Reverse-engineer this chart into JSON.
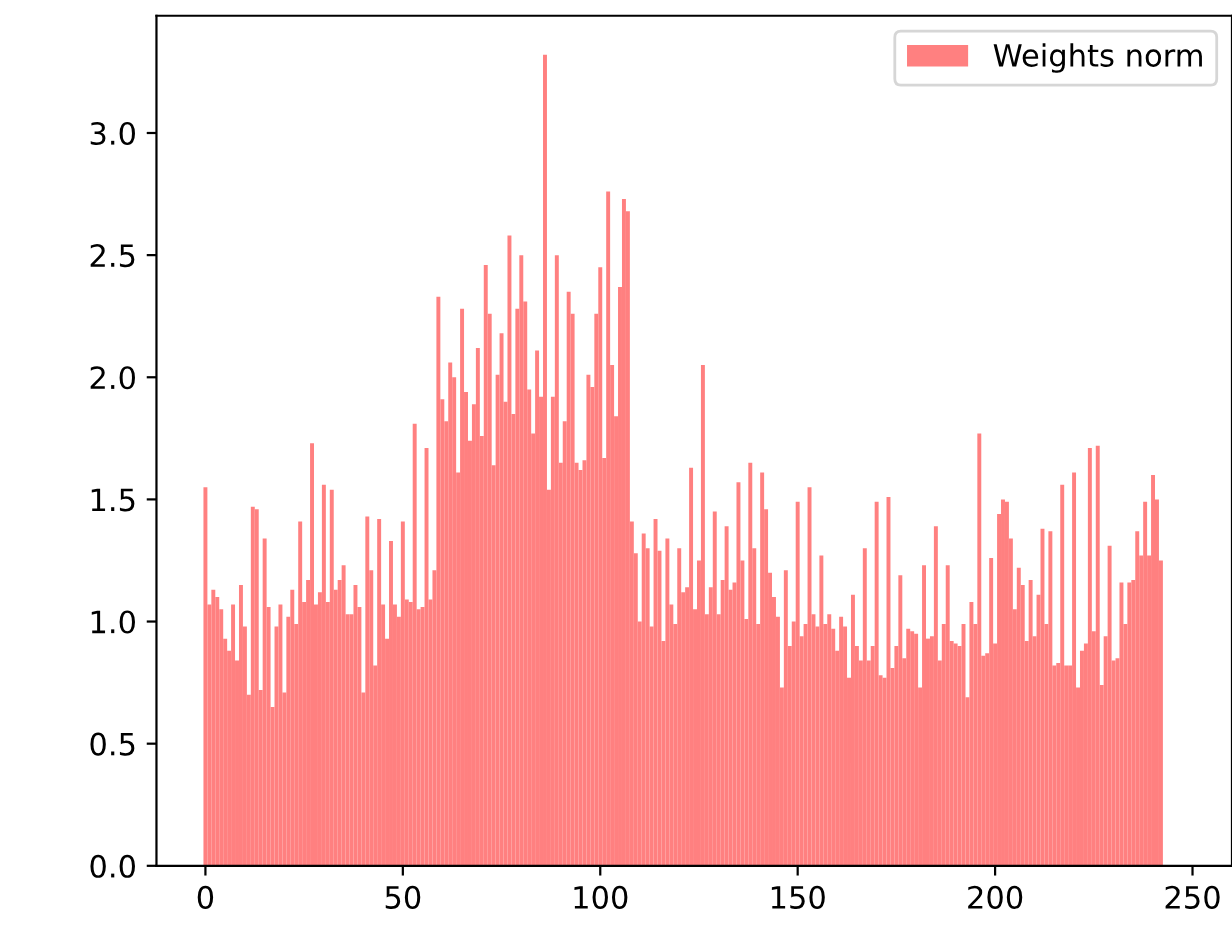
{
  "chart_data": {
    "type": "bar",
    "legend": "top right",
    "grid": false,
    "xlim": [
      -12.4,
      260
    ],
    "ylim": [
      0,
      3.48
    ],
    "xticks": [
      0,
      50,
      100,
      150,
      200,
      250
    ],
    "yticks": [
      {
        "value": 0,
        "label": "0.0"
      },
      {
        "value": 0.5,
        "label": "0.5"
      },
      {
        "value": 1,
        "label": "1.0"
      },
      {
        "value": 1.5,
        "label": "1.5"
      },
      {
        "value": 2,
        "label": "2.0"
      },
      {
        "value": 2.5,
        "label": "2.5"
      },
      {
        "value": 3,
        "label": "3.0"
      }
    ],
    "series": [
      {
        "name": "Weights norm",
        "color": "#ff8080",
        "x": [
          0,
          1,
          2,
          3,
          4,
          5,
          6,
          7,
          8,
          9,
          10,
          11,
          12,
          13,
          14,
          15,
          16,
          17,
          18,
          19,
          20,
          21,
          22,
          23,
          24,
          25,
          26,
          27,
          28,
          29,
          30,
          31,
          32,
          33,
          34,
          35,
          36,
          37,
          38,
          39,
          40,
          41,
          42,
          43,
          44,
          45,
          46,
          47,
          48,
          49,
          50,
          51,
          52,
          53,
          54,
          55,
          56,
          57,
          58,
          59,
          60,
          61,
          62,
          63,
          64,
          65,
          66,
          67,
          68,
          69,
          70,
          71,
          72,
          73,
          74,
          75,
          76,
          77,
          78,
          79,
          80,
          81,
          82,
          83,
          84,
          85,
          86,
          87,
          88,
          89,
          90,
          91,
          92,
          93,
          94,
          95,
          96,
          97,
          98,
          99,
          100,
          101,
          102,
          103,
          104,
          105,
          106,
          107,
          108,
          109,
          110,
          111,
          112,
          113,
          114,
          115,
          116,
          117,
          118,
          119,
          120,
          121,
          122,
          123,
          124,
          125,
          126,
          127,
          128,
          129,
          130,
          131,
          132,
          133,
          134,
          135,
          136,
          137,
          138,
          139,
          140,
          141,
          142,
          143,
          144,
          145,
          146,
          147,
          148,
          149,
          150,
          151,
          152,
          153,
          154,
          155,
          156,
          157,
          158,
          159,
          160,
          161,
          162,
          163,
          164,
          165,
          166,
          167,
          168,
          169,
          170,
          171,
          172,
          173,
          174,
          175,
          176,
          177,
          178,
          179,
          180,
          181,
          182,
          183,
          184,
          185,
          186,
          187,
          188,
          189,
          190,
          191,
          192,
          193,
          194,
          195,
          196,
          197,
          198,
          199,
          200,
          201,
          202,
          203,
          204,
          205,
          206,
          207,
          208,
          209,
          210,
          211,
          212,
          213,
          214,
          215,
          216,
          217,
          218,
          219,
          220,
          221,
          222,
          223,
          224,
          225,
          226,
          227,
          228,
          229,
          230,
          231,
          232,
          233,
          234,
          235,
          236,
          237,
          238,
          239,
          240,
          241,
          242
        ],
        "values": [
          1.55,
          1.07,
          1.13,
          1.1,
          1.05,
          0.93,
          0.88,
          1.07,
          0.84,
          1.15,
          0.98,
          0.7,
          1.47,
          1.46,
          0.72,
          1.34,
          1.06,
          0.65,
          0.98,
          1.07,
          0.71,
          1.02,
          1.13,
          0.99,
          1.41,
          1.08,
          1.17,
          1.73,
          1.07,
          1.12,
          1.56,
          1.08,
          1.54,
          1.13,
          1.17,
          1.23,
          1.03,
          1.03,
          1.15,
          1.06,
          0.71,
          1.43,
          1.21,
          0.82,
          1.42,
          1.07,
          0.93,
          1.33,
          1.07,
          1.02,
          1.41,
          1.09,
          1.08,
          1.81,
          1.05,
          1.06,
          1.71,
          1.09,
          1.21,
          2.33,
          1.91,
          1.82,
          2.06,
          2.0,
          1.61,
          2.28,
          1.94,
          1.74,
          1.89,
          2.12,
          1.76,
          2.46,
          2.26,
          1.64,
          2.01,
          2.18,
          1.9,
          2.58,
          1.85,
          2.28,
          2.5,
          2.31,
          1.95,
          1.77,
          2.11,
          1.92,
          3.32,
          1.54,
          1.92,
          2.5,
          1.65,
          1.82,
          2.35,
          2.26,
          1.65,
          1.62,
          1.66,
          2.01,
          1.96,
          2.26,
          2.45,
          1.67,
          2.76,
          2.05,
          1.84,
          2.37,
          2.73,
          2.68,
          1.41,
          1.28,
          1.0,
          1.36,
          1.3,
          0.98,
          1.42,
          1.29,
          0.92,
          1.34,
          1.07,
          0.99,
          1.3,
          1.12,
          1.14,
          1.63,
          1.05,
          1.25,
          2.05,
          1.03,
          1.14,
          1.45,
          1.03,
          1.17,
          1.39,
          1.13,
          1.16,
          1.57,
          1.25,
          1.01,
          1.65,
          1.3,
          0.99,
          1.61,
          1.46,
          1.2,
          1.1,
          1.02,
          0.73,
          1.21,
          0.9,
          1.0,
          1.49,
          0.94,
          0.99,
          1.55,
          1.03,
          0.98,
          1.27,
          0.99,
          1.03,
          0.97,
          0.88,
          1.02,
          0.98,
          0.77,
          1.11,
          0.9,
          0.84,
          1.3,
          0.84,
          0.9,
          1.49,
          0.78,
          0.77,
          1.51,
          0.81,
          0.9,
          1.19,
          0.85,
          0.97,
          0.96,
          0.95,
          0.73,
          1.23,
          0.93,
          0.94,
          1.39,
          0.84,
          0.99,
          1.23,
          0.92,
          0.91,
          0.9,
          0.99,
          0.69,
          1.08,
          0.99,
          1.77,
          0.86,
          0.87,
          1.26,
          0.91,
          1.44,
          1.5,
          1.49,
          1.34,
          1.05,
          1.22,
          1.15,
          0.92,
          1.17,
          0.94,
          1.11,
          1.38,
          0.99,
          1.37,
          0.82,
          0.83,
          1.56,
          0.82,
          0.82,
          1.61,
          0.73,
          0.88,
          0.91,
          1.71,
          0.96,
          1.72,
          0.74,
          0.94,
          1.31,
          0.84,
          0.85,
          1.16,
          0.99,
          1.16,
          1.17,
          1.37,
          1.27,
          1.49,
          1.27,
          1.6,
          1.5,
          1.25
        ]
      }
    ]
  }
}
